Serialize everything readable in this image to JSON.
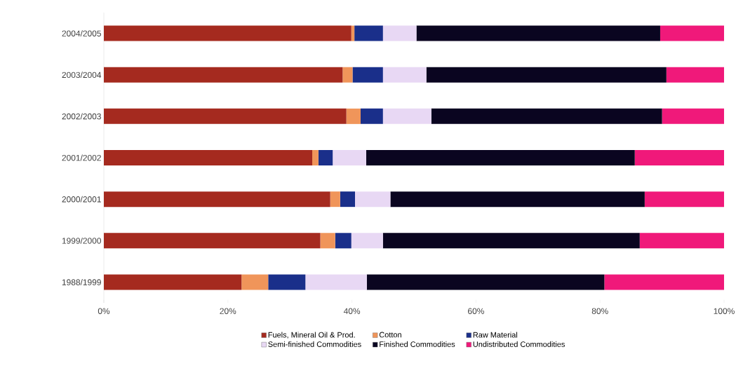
{
  "chart_data": {
    "type": "bar",
    "orientation": "horizontal",
    "stacked": true,
    "categories": [
      "2004/2005",
      "2003/2004",
      "2002/2003",
      "2001/2002",
      "2000/2001",
      "1999/2000",
      "1988/1999"
    ],
    "series": [
      {
        "name": "Fuels,  Mineral Oil & Prod.",
        "color": "#a52a1f",
        "values": [
          39.9,
          38.5,
          39.1,
          33.6,
          36.5,
          34.9,
          22.2
        ]
      },
      {
        "name": "Cotton",
        "color": "#f0955a",
        "values": [
          0.5,
          1.6,
          2.3,
          1.0,
          1.6,
          2.4,
          4.3
        ]
      },
      {
        "name": "Raw Material",
        "color": "#1a2f8a",
        "values": [
          4.6,
          4.9,
          3.6,
          2.3,
          2.4,
          2.6,
          6.0
        ]
      },
      {
        "name": "Semi-finished Commodities",
        "color": "#e8d8f4",
        "values": [
          5.4,
          7.0,
          7.8,
          5.4,
          5.7,
          5.1,
          9.9
        ]
      },
      {
        "name": "Finished Commodities",
        "color": "#0a0520",
        "values": [
          39.3,
          38.7,
          37.2,
          43.3,
          41.0,
          41.4,
          38.3
        ]
      },
      {
        "name": "Undistributed Commodities",
        "color": "#f0197a",
        "values": [
          10.3,
          9.3,
          10.0,
          14.4,
          12.8,
          13.6,
          19.3
        ]
      }
    ],
    "xlim": [
      0,
      100
    ],
    "xticks": [
      {
        "value": 0,
        "label": "0%"
      },
      {
        "value": 20,
        "label": "20%"
      },
      {
        "value": 40,
        "label": "40%"
      },
      {
        "value": 60,
        "label": "60%"
      },
      {
        "value": 80,
        "label": "80%"
      },
      {
        "value": 100,
        "label": "100%"
      }
    ],
    "legend": "bottom"
  }
}
